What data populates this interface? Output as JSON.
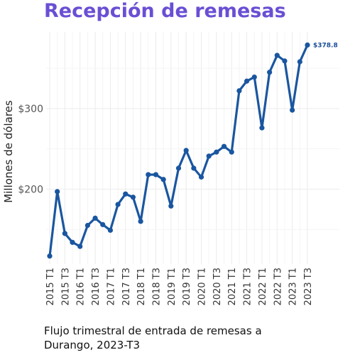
{
  "title": "Recepción de remesas",
  "caption": [
    "Flujo trimestral de entrada de remesas a",
    "Durango, 2023-T3"
  ],
  "colors": {
    "title": "#6a4fd4",
    "line": "#1a56a0",
    "grid": "#ebebeb"
  },
  "chart_data": {
    "type": "line",
    "title": "Recepción de remesas",
    "ylabel": "Millones de dólares",
    "xlabel": "",
    "ylim": [
      107,
      395
    ],
    "y_ticks": [
      200,
      300
    ],
    "y_tick_labels": [
      "$200",
      "$300"
    ],
    "grid": true,
    "x": [
      "2015 T1",
      "2015 T2",
      "2015 T3",
      "2015 T4",
      "2016 T1",
      "2016 T2",
      "2016 T3",
      "2016 T4",
      "2017 T1",
      "2017 T2",
      "2017 T3",
      "2017 T4",
      "2018 T1",
      "2018 T2",
      "2018 T3",
      "2018 T4",
      "2019 T1",
      "2019 T2",
      "2019 T3",
      "2019 T4",
      "2020 T1",
      "2020 T2",
      "2020 T3",
      "2020 T4",
      "2021 T1",
      "2021 T2",
      "2021 T3",
      "2021 T4",
      "2022 T1",
      "2022 T2",
      "2022 T3",
      "2022 T4",
      "2023 T1",
      "2023 T2",
      "2023 T3"
    ],
    "x_tick_labels": [
      "2015 T1",
      "2015 T3",
      "2016 T1",
      "2016 T3",
      "2017 T1",
      "2017 T3",
      "2018 T1",
      "2018 T3",
      "2019 T1",
      "2019 T3",
      "2020 T1",
      "2020 T3",
      "2021 T1",
      "2021 T3",
      "2022 T1",
      "2022 T3",
      "2023 T1",
      "2023 T3"
    ],
    "series": [
      {
        "values": [
          117,
          197,
          145,
          134,
          129,
          155,
          164,
          156,
          149,
          181,
          194,
          190,
          160,
          218,
          218,
          212,
          179,
          226,
          248,
          226,
          215,
          241,
          246,
          253,
          246,
          322,
          334,
          339,
          276,
          345,
          366,
          359,
          298,
          358,
          378.8
        ]
      }
    ],
    "annotations": [
      {
        "x": "2023 T3",
        "value": 378.8,
        "text": "$378.8"
      }
    ]
  }
}
